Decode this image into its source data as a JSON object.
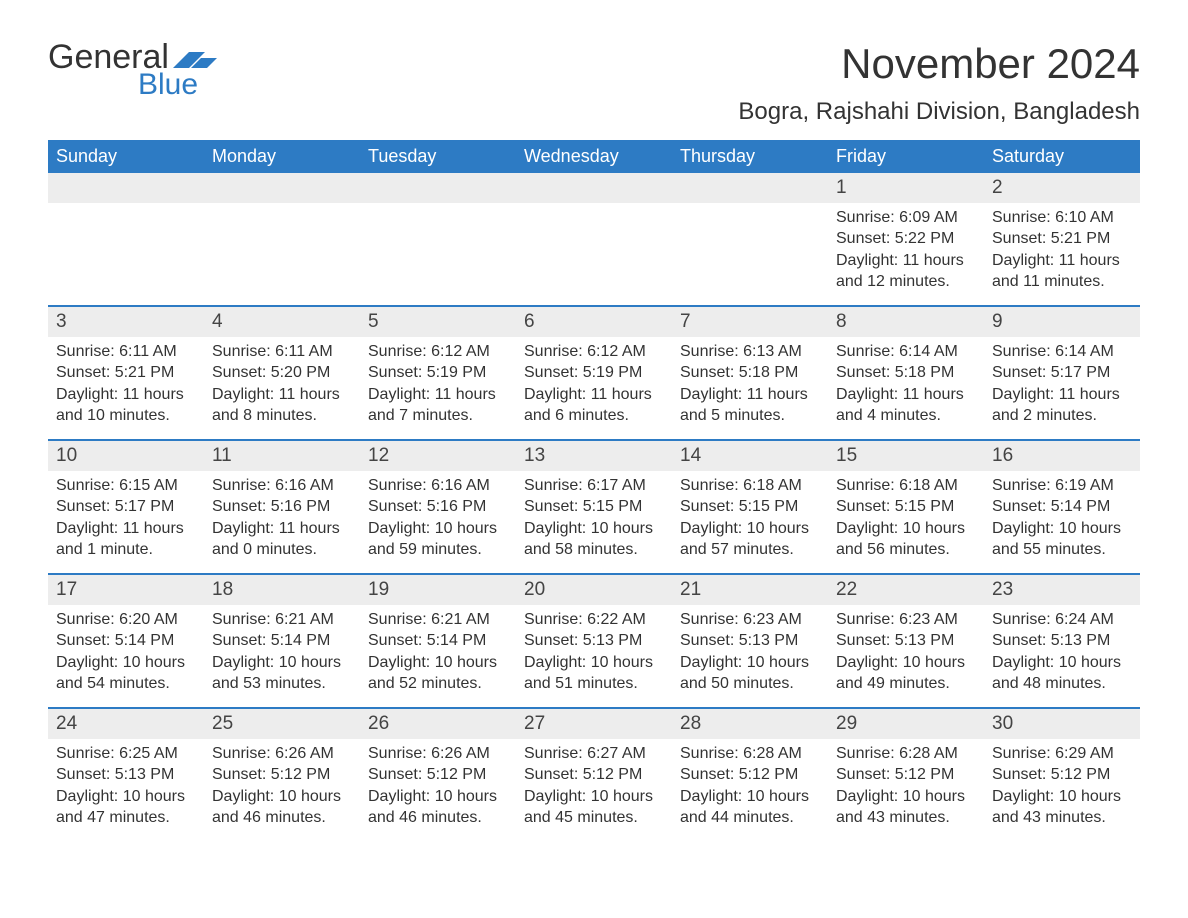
{
  "logo": {
    "text_top": "General",
    "text_bottom": "Blue",
    "color_gray": "#333333",
    "color_blue": "#2d7bc4",
    "flag_color": "#2d7bc4"
  },
  "title": "November 2024",
  "location": "Bogra, Rajshahi Division, Bangladesh",
  "day_headers": [
    "Sunday",
    "Monday",
    "Tuesday",
    "Wednesday",
    "Thursday",
    "Friday",
    "Saturday"
  ],
  "colors": {
    "header_bg": "#2d7bc4",
    "header_text": "#ffffff",
    "daynum_bg": "#ededed",
    "row_border": "#2d7bc4",
    "text": "#333333",
    "background": "#ffffff"
  },
  "typography": {
    "title_fontsize": 42,
    "location_fontsize": 24,
    "header_fontsize": 18,
    "daynum_fontsize": 19,
    "body_fontsize": 16
  },
  "weeks": [
    [
      {
        "n": "",
        "sr": "",
        "ss": "",
        "dl": ""
      },
      {
        "n": "",
        "sr": "",
        "ss": "",
        "dl": ""
      },
      {
        "n": "",
        "sr": "",
        "ss": "",
        "dl": ""
      },
      {
        "n": "",
        "sr": "",
        "ss": "",
        "dl": ""
      },
      {
        "n": "",
        "sr": "",
        "ss": "",
        "dl": ""
      },
      {
        "n": "1",
        "sr": "Sunrise: 6:09 AM",
        "ss": "Sunset: 5:22 PM",
        "dl": "Daylight: 11 hours and 12 minutes."
      },
      {
        "n": "2",
        "sr": "Sunrise: 6:10 AM",
        "ss": "Sunset: 5:21 PM",
        "dl": "Daylight: 11 hours and 11 minutes."
      }
    ],
    [
      {
        "n": "3",
        "sr": "Sunrise: 6:11 AM",
        "ss": "Sunset: 5:21 PM",
        "dl": "Daylight: 11 hours and 10 minutes."
      },
      {
        "n": "4",
        "sr": "Sunrise: 6:11 AM",
        "ss": "Sunset: 5:20 PM",
        "dl": "Daylight: 11 hours and 8 minutes."
      },
      {
        "n": "5",
        "sr": "Sunrise: 6:12 AM",
        "ss": "Sunset: 5:19 PM",
        "dl": "Daylight: 11 hours and 7 minutes."
      },
      {
        "n": "6",
        "sr": "Sunrise: 6:12 AM",
        "ss": "Sunset: 5:19 PM",
        "dl": "Daylight: 11 hours and 6 minutes."
      },
      {
        "n": "7",
        "sr": "Sunrise: 6:13 AM",
        "ss": "Sunset: 5:18 PM",
        "dl": "Daylight: 11 hours and 5 minutes."
      },
      {
        "n": "8",
        "sr": "Sunrise: 6:14 AM",
        "ss": "Sunset: 5:18 PM",
        "dl": "Daylight: 11 hours and 4 minutes."
      },
      {
        "n": "9",
        "sr": "Sunrise: 6:14 AM",
        "ss": "Sunset: 5:17 PM",
        "dl": "Daylight: 11 hours and 2 minutes."
      }
    ],
    [
      {
        "n": "10",
        "sr": "Sunrise: 6:15 AM",
        "ss": "Sunset: 5:17 PM",
        "dl": "Daylight: 11 hours and 1 minute."
      },
      {
        "n": "11",
        "sr": "Sunrise: 6:16 AM",
        "ss": "Sunset: 5:16 PM",
        "dl": "Daylight: 11 hours and 0 minutes."
      },
      {
        "n": "12",
        "sr": "Sunrise: 6:16 AM",
        "ss": "Sunset: 5:16 PM",
        "dl": "Daylight: 10 hours and 59 minutes."
      },
      {
        "n": "13",
        "sr": "Sunrise: 6:17 AM",
        "ss": "Sunset: 5:15 PM",
        "dl": "Daylight: 10 hours and 58 minutes."
      },
      {
        "n": "14",
        "sr": "Sunrise: 6:18 AM",
        "ss": "Sunset: 5:15 PM",
        "dl": "Daylight: 10 hours and 57 minutes."
      },
      {
        "n": "15",
        "sr": "Sunrise: 6:18 AM",
        "ss": "Sunset: 5:15 PM",
        "dl": "Daylight: 10 hours and 56 minutes."
      },
      {
        "n": "16",
        "sr": "Sunrise: 6:19 AM",
        "ss": "Sunset: 5:14 PM",
        "dl": "Daylight: 10 hours and 55 minutes."
      }
    ],
    [
      {
        "n": "17",
        "sr": "Sunrise: 6:20 AM",
        "ss": "Sunset: 5:14 PM",
        "dl": "Daylight: 10 hours and 54 minutes."
      },
      {
        "n": "18",
        "sr": "Sunrise: 6:21 AM",
        "ss": "Sunset: 5:14 PM",
        "dl": "Daylight: 10 hours and 53 minutes."
      },
      {
        "n": "19",
        "sr": "Sunrise: 6:21 AM",
        "ss": "Sunset: 5:14 PM",
        "dl": "Daylight: 10 hours and 52 minutes."
      },
      {
        "n": "20",
        "sr": "Sunrise: 6:22 AM",
        "ss": "Sunset: 5:13 PM",
        "dl": "Daylight: 10 hours and 51 minutes."
      },
      {
        "n": "21",
        "sr": "Sunrise: 6:23 AM",
        "ss": "Sunset: 5:13 PM",
        "dl": "Daylight: 10 hours and 50 minutes."
      },
      {
        "n": "22",
        "sr": "Sunrise: 6:23 AM",
        "ss": "Sunset: 5:13 PM",
        "dl": "Daylight: 10 hours and 49 minutes."
      },
      {
        "n": "23",
        "sr": "Sunrise: 6:24 AM",
        "ss": "Sunset: 5:13 PM",
        "dl": "Daylight: 10 hours and 48 minutes."
      }
    ],
    [
      {
        "n": "24",
        "sr": "Sunrise: 6:25 AM",
        "ss": "Sunset: 5:13 PM",
        "dl": "Daylight: 10 hours and 47 minutes."
      },
      {
        "n": "25",
        "sr": "Sunrise: 6:26 AM",
        "ss": "Sunset: 5:12 PM",
        "dl": "Daylight: 10 hours and 46 minutes."
      },
      {
        "n": "26",
        "sr": "Sunrise: 6:26 AM",
        "ss": "Sunset: 5:12 PM",
        "dl": "Daylight: 10 hours and 46 minutes."
      },
      {
        "n": "27",
        "sr": "Sunrise: 6:27 AM",
        "ss": "Sunset: 5:12 PM",
        "dl": "Daylight: 10 hours and 45 minutes."
      },
      {
        "n": "28",
        "sr": "Sunrise: 6:28 AM",
        "ss": "Sunset: 5:12 PM",
        "dl": "Daylight: 10 hours and 44 minutes."
      },
      {
        "n": "29",
        "sr": "Sunrise: 6:28 AM",
        "ss": "Sunset: 5:12 PM",
        "dl": "Daylight: 10 hours and 43 minutes."
      },
      {
        "n": "30",
        "sr": "Sunrise: 6:29 AM",
        "ss": "Sunset: 5:12 PM",
        "dl": "Daylight: 10 hours and 43 minutes."
      }
    ]
  ]
}
